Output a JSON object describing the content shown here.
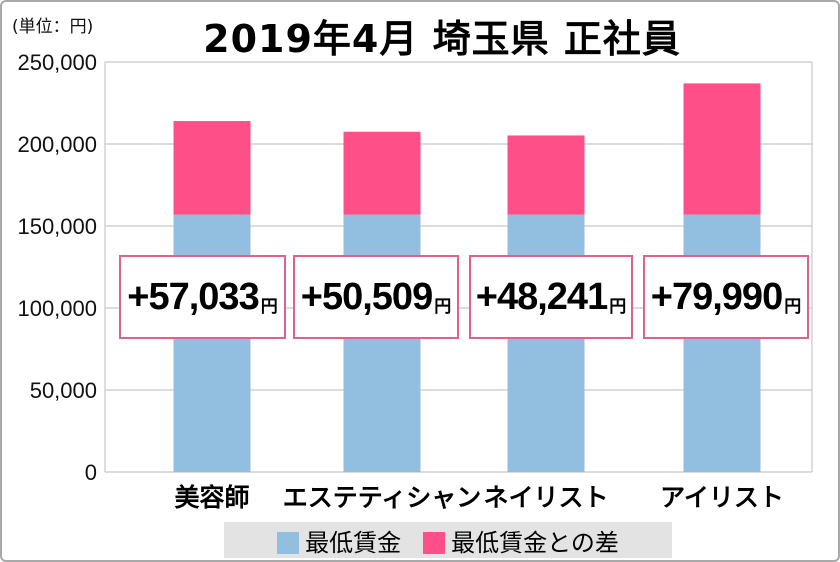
{
  "chart_data": {
    "type": "bar",
    "stacked": true,
    "title": "2019年4月 埼玉県 正社員",
    "unit_label": "(単位：円)",
    "categories": [
      "美容師",
      "エステティシャン",
      "ネイリスト",
      "アイリスト"
    ],
    "series": [
      {
        "name": "最低賃金",
        "color": "#92bfe0",
        "values": [
          156967,
          156967,
          156967,
          156967
        ]
      },
      {
        "name": "最低賃金との差",
        "color": "#ff4f88",
        "values": [
          57033,
          50509,
          48241,
          79990
        ]
      }
    ],
    "data_labels": [
      "+57,033",
      "+50,509",
      "+48,241",
      "+79,990"
    ],
    "data_label_unit": "円",
    "ylim": [
      0,
      250000
    ],
    "yticks": [
      "0",
      "50,000",
      "100,000",
      "150,000",
      "200,000",
      "250,000"
    ],
    "ytick_values": [
      0,
      50000,
      100000,
      150000,
      200000,
      250000
    ],
    "grid": true,
    "legend_position": "bottom"
  }
}
